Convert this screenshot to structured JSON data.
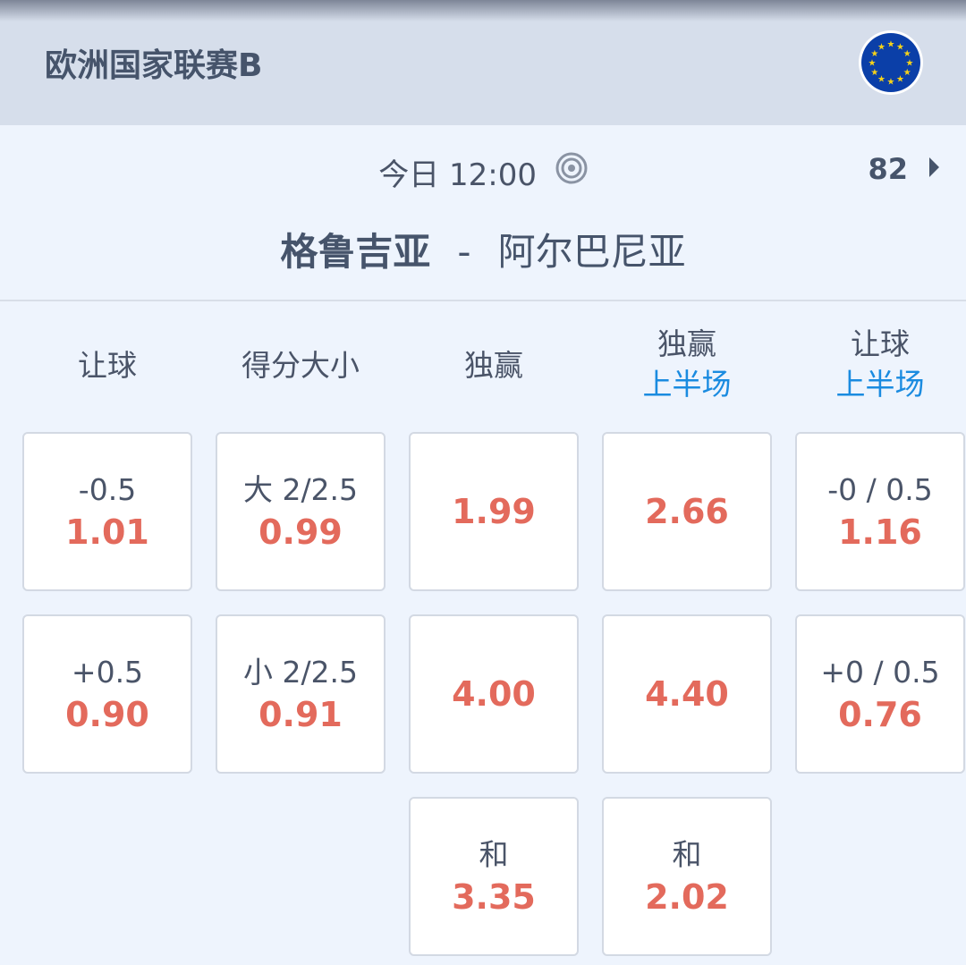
{
  "header": {
    "league": "欧洲国家联赛B",
    "flag_icon": "eu-flag-icon"
  },
  "match": {
    "time": "今日 12:00",
    "more_count": "82",
    "home": "格鲁吉亚",
    "separator": "-",
    "away": "阿尔巴尼亚"
  },
  "colors": {
    "odds": "#e36a5c",
    "accent": "#1a8be0"
  },
  "columns": [
    {
      "title": "让球",
      "sub": ""
    },
    {
      "title": "得分大小",
      "sub": ""
    },
    {
      "title": "独赢",
      "sub": ""
    },
    {
      "title": "独赢",
      "sub": "上半场"
    },
    {
      "title": "让球",
      "sub": "上半场"
    }
  ],
  "rows": [
    [
      {
        "label": "-0.5",
        "odd": "1.01"
      },
      {
        "label": "大 2/2.5",
        "odd": "0.99"
      },
      {
        "label": "",
        "odd": "1.99"
      },
      {
        "label": "",
        "odd": "2.66"
      },
      {
        "label": "-0 / 0.5",
        "odd": "1.16"
      }
    ],
    [
      {
        "label": "+0.5",
        "odd": "0.90"
      },
      {
        "label": "小 2/2.5",
        "odd": "0.91"
      },
      {
        "label": "",
        "odd": "4.00"
      },
      {
        "label": "",
        "odd": "4.40"
      },
      {
        "label": "+0 / 0.5",
        "odd": "0.76"
      }
    ],
    [
      null,
      null,
      {
        "label": "和",
        "odd": "3.35"
      },
      {
        "label": "和",
        "odd": "2.02"
      },
      null
    ]
  ]
}
